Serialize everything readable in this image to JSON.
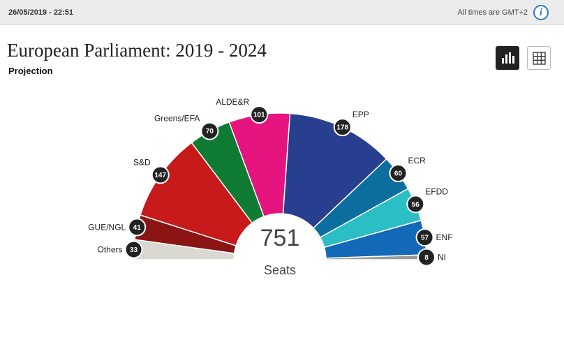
{
  "header": {
    "timestamp": "26/05/2019 - 22:51",
    "timezone_note": "All times are GMT+2",
    "info_icon": "info-icon"
  },
  "title": "European Parliament: 2019 - 2024",
  "subtitle": "Projection",
  "view_buttons": [
    {
      "name": "chart-view",
      "icon": "bar-chart-icon",
      "active": true
    },
    {
      "name": "table-view",
      "icon": "grid-icon",
      "active": false
    }
  ],
  "chart_data": {
    "type": "semicircle",
    "total_value": "751",
    "total_label": "Seats",
    "series": [
      {
        "name": "Others",
        "value": 33,
        "color": "#d9d9d2"
      },
      {
        "name": "GUE/NGL",
        "value": 41,
        "color": "#8b1414"
      },
      {
        "name": "S&D",
        "value": 147,
        "color": "#c8191b"
      },
      {
        "name": "Greens/EFA",
        "value": 70,
        "color": "#0f7a34"
      },
      {
        "name": "ALDE&R",
        "value": 101,
        "color": "#e5147f"
      },
      {
        "name": "EPP",
        "value": 178,
        "color": "#283e8e"
      },
      {
        "name": "ECR",
        "value": 60,
        "color": "#0b6e9f"
      },
      {
        "name": "EFDD",
        "value": 56,
        "color": "#2bbec5"
      },
      {
        "name": "ENF",
        "value": 57,
        "color": "#1368b7"
      },
      {
        "name": "NI",
        "value": 8,
        "color": "#9a9a9a"
      }
    ]
  }
}
